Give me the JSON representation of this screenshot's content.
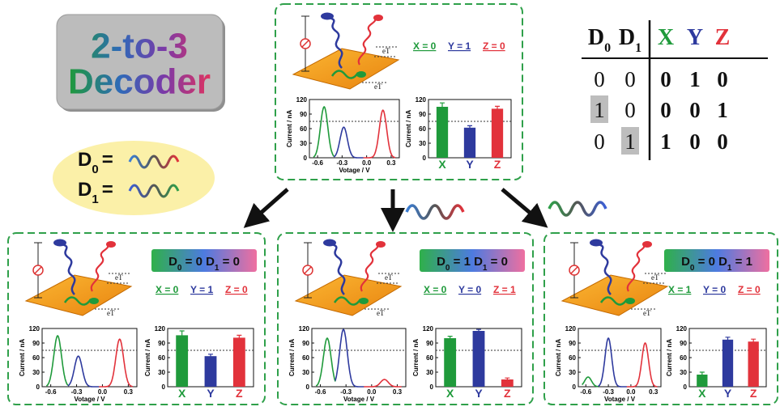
{
  "title": {
    "line1": "2-to-3",
    "line2": "Decoder"
  },
  "inputs": [
    {
      "symbol": "D",
      "subscript": "0",
      "relation": "="
    },
    {
      "symbol": "D",
      "subscript": "1",
      "relation": "="
    }
  ],
  "truth_table": {
    "header": [
      {
        "symbol": "D",
        "subscript": "0"
      },
      {
        "symbol": "D",
        "subscript": "1"
      },
      {
        "symbol": "X",
        "color": "#1f9a3b"
      },
      {
        "symbol": "Y",
        "color": "#2e3a9e"
      },
      {
        "symbol": "Z",
        "color": "#e2323b"
      }
    ],
    "rows": [
      [
        "0",
        "0",
        "0",
        "1",
        "0"
      ],
      [
        "1",
        "0",
        "0",
        "0",
        "1"
      ],
      [
        "0",
        "1",
        "1",
        "0",
        "0"
      ]
    ],
    "highlighted": [
      [
        1,
        0
      ],
      [
        2,
        1
      ]
    ]
  },
  "electron_transfer_label": "eT",
  "panels": [
    {
      "outputs": [
        {
          "text": "X = 0",
          "color": "#1f9a3b"
        },
        {
          "text": "Y = 1",
          "color": "#2e3a9e"
        },
        {
          "text": "Z = 0",
          "color": "#e2323b"
        }
      ],
      "voltammogram": {
        "type": "line",
        "xlabel": "Votage / V",
        "ylabel": "Current / nA",
        "xlim": [
          -0.7,
          0.4
        ],
        "ylim": [
          0,
          120
        ],
        "xticks": [
          -0.6,
          -0.3,
          {
            "value": 0,
            "label": "0.0"
          },
          0.3
        ],
        "yticks": [
          0,
          30,
          60,
          90,
          120
        ],
        "threshold": 75,
        "peaks": [
          {
            "x": -0.52,
            "height": 105,
            "color": "#1f9a3b"
          },
          {
            "x": -0.28,
            "height": 63,
            "color": "#2e3a9e"
          },
          {
            "x": 0.2,
            "height": 98,
            "color": "#e2323b"
          }
        ]
      },
      "bars": {
        "type": "bar",
        "ylabel": "Current / nA",
        "categories": [
          "X",
          "Y",
          "Z"
        ],
        "colors": [
          "#1f9a3b",
          "#2e3a9e",
          "#e2323b"
        ],
        "values": [
          105,
          62,
          101
        ],
        "errors": [
          8,
          4,
          5
        ],
        "ylim": [
          0,
          120
        ],
        "yticks": [
          0,
          30,
          60,
          90,
          120
        ],
        "threshold": 75
      }
    },
    {
      "state": [
        {
          "symbol": "D",
          "subscript": "0",
          "text": " = 0 "
        },
        {
          "symbol": "D",
          "subscript": "1",
          "text": " = 0"
        }
      ],
      "outputs": [
        {
          "text": "X = 0",
          "color": "#1f9a3b"
        },
        {
          "text": "Y = 1",
          "color": "#2e3a9e"
        },
        {
          "text": "Z = 0",
          "color": "#e2323b"
        }
      ],
      "voltammogram": {
        "type": "line",
        "xlabel": "Votage / V",
        "ylabel": "Current / nA",
        "xlim": [
          -0.7,
          0.4
        ],
        "ylim": [
          0,
          120
        ],
        "xticks": [
          -0.6,
          -0.3,
          {
            "value": 0,
            "label": "0.0"
          },
          0.3
        ],
        "yticks": [
          0,
          30,
          60,
          90,
          120
        ],
        "threshold": 75,
        "peaks": [
          {
            "x": -0.52,
            "height": 105,
            "color": "#1f9a3b"
          },
          {
            "x": -0.28,
            "height": 63,
            "color": "#2e3a9e"
          },
          {
            "x": 0.2,
            "height": 98,
            "color": "#e2323b"
          }
        ]
      },
      "bars": {
        "type": "bar",
        "ylabel": "Current / nA",
        "categories": [
          "X",
          "Y",
          "Z"
        ],
        "colors": [
          "#1f9a3b",
          "#2e3a9e",
          "#e2323b"
        ],
        "values": [
          106,
          63,
          101
        ],
        "errors": [
          9,
          4,
          5
        ],
        "ylim": [
          0,
          120
        ],
        "yticks": [
          0,
          30,
          60,
          90,
          120
        ],
        "threshold": 75
      }
    },
    {
      "state": [
        {
          "symbol": "D",
          "subscript": "0",
          "text": " = 1 "
        },
        {
          "symbol": "D",
          "subscript": "1",
          "text": " = 0"
        }
      ],
      "outputs": [
        {
          "text": "X = 0",
          "color": "#1f9a3b"
        },
        {
          "text": "Y = 0",
          "color": "#2e3a9e"
        },
        {
          "text": "Z = 1",
          "color": "#e2323b"
        }
      ],
      "voltammogram": {
        "type": "line",
        "xlabel": "Votage / V",
        "ylabel": "Current / nA",
        "xlim": [
          -0.7,
          0.4
        ],
        "ylim": [
          0,
          120
        ],
        "xticks": [
          -0.6,
          -0.3,
          {
            "value": 0,
            "label": "0.0"
          },
          0.3
        ],
        "yticks": [
          0,
          30,
          60,
          90,
          120
        ],
        "threshold": 75,
        "peaks": [
          {
            "x": -0.52,
            "height": 100,
            "color": "#1f9a3b"
          },
          {
            "x": -0.33,
            "height": 118,
            "color": "#2e3a9e"
          },
          {
            "x": 0.15,
            "height": 15,
            "color": "#e2323b"
          }
        ]
      },
      "bars": {
        "type": "bar",
        "ylabel": "Current / nA",
        "categories": [
          "X",
          "Y",
          "Z"
        ],
        "colors": [
          "#1f9a3b",
          "#2e3a9e",
          "#e2323b"
        ],
        "values": [
          100,
          115,
          15
        ],
        "errors": [
          4,
          3,
          3
        ],
        "ylim": [
          0,
          120
        ],
        "yticks": [
          0,
          30,
          60,
          90,
          120
        ],
        "threshold": 75
      }
    },
    {
      "state": [
        {
          "symbol": "D",
          "subscript": "0",
          "text": " = 0 "
        },
        {
          "symbol": "D",
          "subscript": "1",
          "text": " = 1"
        }
      ],
      "outputs": [
        {
          "text": "X = 1",
          "color": "#1f9a3b"
        },
        {
          "text": "Y = 0",
          "color": "#2e3a9e"
        },
        {
          "text": "Z = 0",
          "color": "#e2323b"
        }
      ],
      "voltammogram": {
        "type": "line",
        "xlabel": "Votage / V",
        "ylabel": "Current / nA",
        "xlim": [
          -0.7,
          0.4
        ],
        "ylim": [
          0,
          120
        ],
        "xticks": [
          -0.6,
          -0.3,
          {
            "value": 0,
            "label": "0.0"
          },
          0.3
        ],
        "yticks": [
          0,
          30,
          60,
          90,
          120
        ],
        "threshold": 75,
        "peaks": [
          {
            "x": -0.57,
            "height": 20,
            "color": "#1f9a3b"
          },
          {
            "x": -0.3,
            "height": 100,
            "color": "#2e3a9e"
          },
          {
            "x": 0.19,
            "height": 90,
            "color": "#e2323b"
          }
        ]
      },
      "bars": {
        "type": "bar",
        "ylabel": "Current / nA",
        "categories": [
          "X",
          "Y",
          "Z"
        ],
        "colors": [
          "#1f9a3b",
          "#2e3a9e",
          "#e2323b"
        ],
        "values": [
          25,
          97,
          93
        ],
        "errors": [
          5,
          5,
          5
        ],
        "ylim": [
          0,
          120
        ],
        "yticks": [
          0,
          30,
          60,
          90,
          120
        ],
        "threshold": 75
      }
    }
  ]
}
